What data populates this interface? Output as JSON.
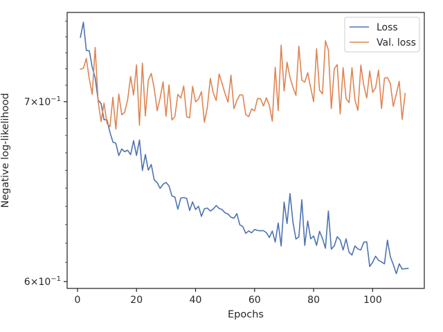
{
  "chart_data": {
    "type": "line",
    "xlabel": "Epochs",
    "ylabel": "Negative log-likelihood",
    "yscale": "log",
    "xlim": [
      -3.5,
      117.5
    ],
    "ylim": [
      0.5965,
      0.7556
    ],
    "xticks": [
      0,
      20,
      40,
      60,
      80,
      100
    ],
    "xtick_labels": [
      "0",
      "20",
      "40",
      "60",
      "80",
      "100"
    ],
    "yticks": [
      {
        "value": 0.7,
        "base": "7",
        "exp": "−1"
      },
      {
        "value": 0.6,
        "base": "6",
        "exp": "−1"
      }
    ],
    "legend_position": "top-right",
    "grid": false,
    "colors": {
      "loss": "#4c72b0",
      "val_loss": "#dd8452"
    },
    "series": [
      {
        "name": "Loss",
        "color": "#4c72b0",
        "x": [
          1,
          2,
          3,
          4,
          5,
          6,
          7,
          8,
          9,
          10,
          11,
          12,
          13,
          14,
          15,
          16,
          17,
          18,
          19,
          20,
          21,
          22,
          23,
          24,
          25,
          26,
          27,
          28,
          29,
          30,
          31,
          32,
          33,
          34,
          35,
          36,
          37,
          38,
          39,
          40,
          41,
          42,
          43,
          44,
          45,
          46,
          47,
          48,
          49,
          50,
          51,
          52,
          53,
          54,
          55,
          56,
          57,
          58,
          59,
          60,
          61,
          62,
          63,
          64,
          65,
          66,
          67,
          68,
          69,
          70,
          71,
          72,
          73,
          74,
          75,
          76,
          77,
          78,
          79,
          80,
          81,
          82,
          83,
          84,
          85,
          86,
          87,
          88,
          89,
          90,
          91,
          92,
          93,
          94,
          95,
          96,
          97,
          98,
          99,
          100,
          101,
          102,
          103,
          104,
          105,
          106,
          107,
          108,
          109,
          110,
          111,
          112
        ],
        "values": [
          0.7397,
          0.7493,
          0.7314,
          0.7312,
          0.7209,
          0.7144,
          0.701,
          0.6988,
          0.6893,
          0.6891,
          0.6819,
          0.6762,
          0.6755,
          0.6684,
          0.6722,
          0.6706,
          0.6715,
          0.6689,
          0.677,
          0.6685,
          0.6774,
          0.6599,
          0.669,
          0.6601,
          0.6633,
          0.6546,
          0.6531,
          0.6499,
          0.6522,
          0.6532,
          0.6513,
          0.6457,
          0.6451,
          0.6384,
          0.6445,
          0.6448,
          0.6443,
          0.6377,
          0.6424,
          0.6382,
          0.64,
          0.6345,
          0.6386,
          0.639,
          0.6374,
          0.6385,
          0.6404,
          0.6388,
          0.6382,
          0.6364,
          0.6358,
          0.634,
          0.6335,
          0.636,
          0.6299,
          0.629,
          0.6253,
          0.6266,
          0.6256,
          0.6274,
          0.6269,
          0.6267,
          0.6268,
          0.6257,
          0.6231,
          0.6266,
          0.6207,
          0.6309,
          0.6186,
          0.6423,
          0.6306,
          0.647,
          0.6313,
          0.6223,
          0.6234,
          0.6436,
          0.6189,
          0.632,
          0.6224,
          0.6239,
          0.6189,
          0.6264,
          0.6226,
          0.6174,
          0.6374,
          0.6169,
          0.6187,
          0.6235,
          0.6218,
          0.6165,
          0.6224,
          0.6153,
          0.6138,
          0.6186,
          0.617,
          0.6165,
          0.6206,
          0.6208,
          0.6078,
          0.61,
          0.6132,
          0.611,
          0.6102,
          0.6092,
          0.6217,
          0.6129,
          0.6088,
          0.6041,
          0.6092,
          0.6065,
          0.6067,
          0.6068
        ]
      },
      {
        "name": "Val. loss",
        "color": "#dd8452",
        "x": [
          1,
          2,
          3,
          4,
          5,
          6,
          7,
          8,
          9,
          10,
          11,
          12,
          13,
          14,
          15,
          16,
          17,
          18,
          19,
          20,
          21,
          22,
          23,
          24,
          25,
          26,
          27,
          28,
          29,
          30,
          31,
          32,
          33,
          34,
          35,
          36,
          37,
          38,
          39,
          40,
          41,
          42,
          43,
          44,
          45,
          46,
          47,
          48,
          49,
          50,
          51,
          52,
          53,
          54,
          55,
          56,
          57,
          58,
          59,
          60,
          61,
          62,
          63,
          64,
          65,
          66,
          67,
          68,
          69,
          70,
          71,
          72,
          73,
          74,
          75,
          76,
          77,
          78,
          79,
          80,
          81,
          82,
          83,
          84,
          85,
          86,
          87,
          88,
          89,
          90,
          91,
          92,
          93,
          94,
          95,
          96,
          97,
          98,
          99,
          100,
          101,
          102,
          103,
          104,
          105,
          106,
          107,
          108,
          109,
          110,
          111,
          112
        ],
        "values": [
          0.7197,
          0.7203,
          0.7264,
          0.7138,
          0.7044,
          0.7333,
          0.7001,
          0.6882,
          0.6991,
          0.6871,
          0.6852,
          0.7026,
          0.6837,
          0.7046,
          0.6921,
          0.6937,
          0.7012,
          0.7153,
          0.704,
          0.7224,
          0.686,
          0.7235,
          0.6915,
          0.7131,
          0.7171,
          0.708,
          0.6946,
          0.7022,
          0.712,
          0.6913,
          0.7101,
          0.6891,
          0.6912,
          0.7044,
          0.7022,
          0.7095,
          0.691,
          0.6904,
          0.7092,
          0.6999,
          0.7015,
          0.706,
          0.6878,
          0.6967,
          0.7141,
          0.7052,
          0.7007,
          0.7168,
          0.7109,
          0.7049,
          0.6997,
          0.7161,
          0.6958,
          0.7007,
          0.7041,
          0.704,
          0.6923,
          0.6911,
          0.6957,
          0.6945,
          0.7019,
          0.7018,
          0.6974,
          0.7023,
          0.6977,
          0.6884,
          0.7209,
          0.6946,
          0.7347,
          0.7064,
          0.724,
          0.7147,
          0.7087,
          0.7038,
          0.7341,
          0.713,
          0.7118,
          0.7176,
          0.7085,
          0.7,
          0.7325,
          0.7069,
          0.7047,
          0.7375,
          0.7317,
          0.6959,
          0.72,
          0.7226,
          0.6927,
          0.7207,
          0.7018,
          0.6994,
          0.7207,
          0.7011,
          0.6948,
          0.7223,
          0.7097,
          0.7022,
          0.7186,
          0.7056,
          0.7084,
          0.7192,
          0.6959,
          0.7142,
          0.7146,
          0.7109,
          0.6971,
          0.7046,
          0.7123,
          0.6895,
          0.7049,
          null
        ]
      }
    ]
  }
}
